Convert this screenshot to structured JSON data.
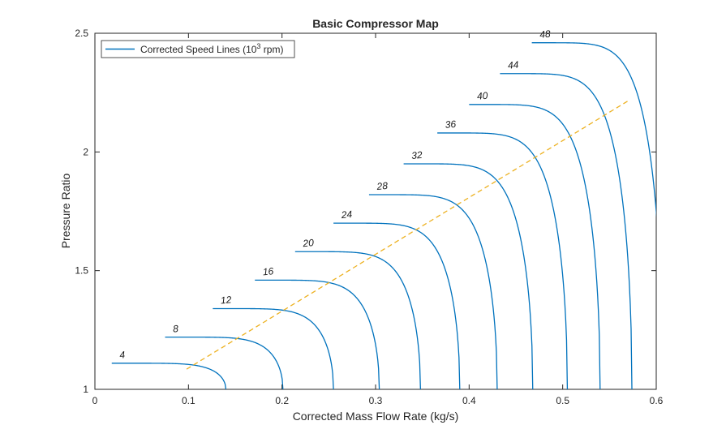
{
  "chart_data": {
    "type": "line",
    "title": "Basic Compressor Map",
    "xlabel": "Corrected Mass Flow Rate (kg/s)",
    "ylabel": "Pressure Ratio",
    "xlim": [
      0,
      0.6
    ],
    "ylim": [
      1,
      2.5
    ],
    "xticks": [
      0,
      0.1,
      0.2,
      0.3,
      0.4,
      0.5,
      0.6
    ],
    "xtick_labels": [
      "0",
      "0.1",
      "0.2",
      "0.3",
      "0.4",
      "0.5",
      "0.6"
    ],
    "yticks": [
      1,
      1.5,
      2,
      2.5
    ],
    "ytick_labels": [
      "1",
      "1.5",
      "2",
      "2.5"
    ],
    "grid": false,
    "legend": {
      "location": "top-left",
      "text_main": "Corrected  Speed  Lines  (10",
      "text_sup": "3",
      "text_end": "  rpm)"
    },
    "colors": {
      "speed_lines": "#0072BD",
      "surge_line": "#EDB120",
      "axes": "#262626"
    },
    "speed_lines": [
      {
        "label": "4",
        "m_start": 0.018,
        "pr_start": 1.11,
        "m_choke": 0.14
      },
      {
        "label": "8",
        "m_start": 0.075,
        "pr_start": 1.22,
        "m_choke": 0.201
      },
      {
        "label": "12",
        "m_start": 0.126,
        "pr_start": 1.34,
        "m_choke": 0.255
      },
      {
        "label": "16",
        "m_start": 0.171,
        "pr_start": 1.46,
        "m_choke": 0.304
      },
      {
        "label": "20",
        "m_start": 0.214,
        "pr_start": 1.58,
        "m_choke": 0.348
      },
      {
        "label": "24",
        "m_start": 0.255,
        "pr_start": 1.7,
        "m_choke": 0.39
      },
      {
        "label": "28",
        "m_start": 0.293,
        "pr_start": 1.82,
        "m_choke": 0.43
      },
      {
        "label": "32",
        "m_start": 0.33,
        "pr_start": 1.95,
        "m_choke": 0.468
      },
      {
        "label": "36",
        "m_start": 0.366,
        "pr_start": 2.08,
        "m_choke": 0.505
      },
      {
        "label": "40",
        "m_start": 0.4,
        "pr_start": 2.2,
        "m_choke": 0.54
      },
      {
        "label": "44",
        "m_start": 0.433,
        "pr_start": 2.33,
        "m_choke": 0.574
      },
      {
        "label": "48",
        "m_start": 0.467,
        "pr_start": 2.46,
        "m_choke": 0.607
      }
    ],
    "surge_line": {
      "style": "dashed",
      "x": [
        0.098,
        0.572
      ],
      "y": [
        1.085,
        2.22
      ]
    }
  }
}
